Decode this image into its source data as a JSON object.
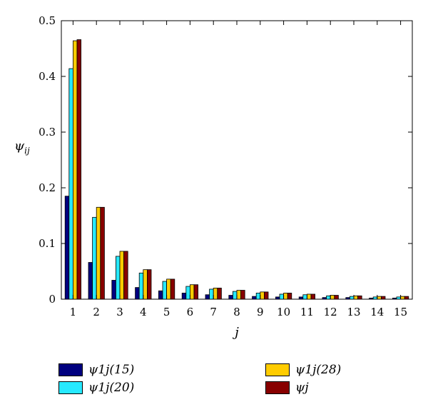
{
  "chart_data": {
    "type": "bar",
    "x": [
      1,
      2,
      3,
      4,
      5,
      6,
      7,
      8,
      9,
      10,
      11,
      12,
      13,
      14,
      15
    ],
    "xlabel": "j",
    "ylabel": "ψij",
    "ylim": [
      0,
      0.5
    ],
    "yticks": [
      0,
      0.1,
      0.2,
      0.3,
      0.4,
      0.5
    ],
    "yticks_labels": [
      "0",
      "0.1",
      "0.2",
      "0.3",
      "0.4",
      "0.5"
    ],
    "grid": false,
    "legend_position": "bottom",
    "series": [
      {
        "name": "ψ1j(15)",
        "color": "#00007f",
        "values": [
          0.185,
          0.066,
          0.034,
          0.021,
          0.015,
          0.011,
          0.008,
          0.007,
          0.005,
          0.004,
          0.004,
          0.003,
          0.003,
          0.002,
          0.002
        ]
      },
      {
        "name": "ψ1j(20)",
        "color": "#27e9ff",
        "values": [
          0.414,
          0.147,
          0.077,
          0.047,
          0.032,
          0.023,
          0.018,
          0.014,
          0.011,
          0.009,
          0.008,
          0.006,
          0.005,
          0.004,
          0.004
        ]
      },
      {
        "name": "ψ1j(28)",
        "color": "#ffcc00",
        "values": [
          0.464,
          0.165,
          0.086,
          0.053,
          0.036,
          0.026,
          0.02,
          0.016,
          0.013,
          0.011,
          0.009,
          0.007,
          0.006,
          0.005,
          0.005
        ]
      },
      {
        "name": "ψj",
        "color": "#880000",
        "values": [
          0.466,
          0.165,
          0.086,
          0.053,
          0.036,
          0.026,
          0.02,
          0.016,
          0.013,
          0.011,
          0.009,
          0.007,
          0.006,
          0.005,
          0.005
        ]
      }
    ]
  }
}
